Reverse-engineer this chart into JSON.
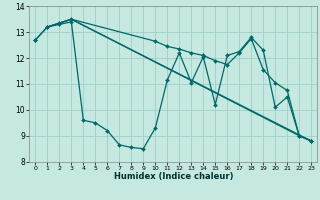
{
  "xlabel": "Humidex (Indice chaleur)",
  "background_color": "#c5e8e0",
  "grid_color": "#9fcfc8",
  "line_color": "#006868",
  "xlim": [
    -0.5,
    23.5
  ],
  "ylim": [
    8,
    14
  ],
  "yticks": [
    8,
    9,
    10,
    11,
    12,
    13,
    14
  ],
  "xticks": [
    0,
    1,
    2,
    3,
    4,
    5,
    6,
    7,
    8,
    9,
    10,
    11,
    12,
    13,
    14,
    15,
    16,
    17,
    18,
    19,
    20,
    21,
    22,
    23
  ],
  "series1_x": [
    0,
    1,
    2,
    3,
    4,
    5,
    6,
    7,
    8,
    9,
    10,
    11,
    12,
    13,
    14,
    15,
    16,
    17,
    18,
    19,
    20,
    21,
    22,
    23
  ],
  "series1_y": [
    12.7,
    13.2,
    13.3,
    13.4,
    9.6,
    9.5,
    9.2,
    8.65,
    8.55,
    8.5,
    9.3,
    11.15,
    12.2,
    11.05,
    12.05,
    10.2,
    12.1,
    12.25,
    12.8,
    12.3,
    10.1,
    10.5,
    9.0,
    8.8
  ],
  "series2_x": [
    0,
    1,
    2,
    3,
    10,
    11,
    12,
    13,
    14,
    15,
    16,
    17,
    18,
    19,
    20,
    21,
    22,
    23
  ],
  "series2_y": [
    12.7,
    13.2,
    13.35,
    13.5,
    12.65,
    12.45,
    12.35,
    12.2,
    12.1,
    11.9,
    11.75,
    12.2,
    12.75,
    11.55,
    11.05,
    10.75,
    9.0,
    8.8
  ],
  "series3_x": [
    1,
    2,
    3,
    23
  ],
  "series3_y": [
    13.2,
    13.35,
    13.5,
    8.8
  ],
  "series4_x": [
    1,
    2,
    3,
    22,
    23
  ],
  "series4_y": [
    13.2,
    13.35,
    13.5,
    9.0,
    8.8
  ]
}
